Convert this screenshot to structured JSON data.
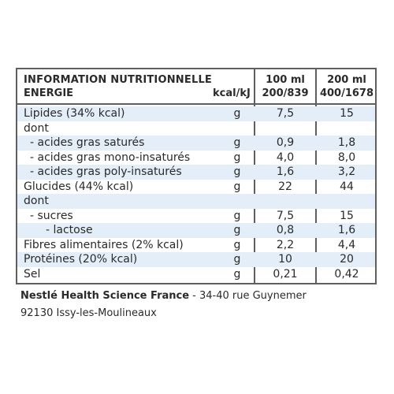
{
  "header": {
    "title": "INFORMATION NUTRITIONNELLE",
    "energy_label": "ENERGIE",
    "energy_unit": "kcal/kJ",
    "col1_title": "100 ml",
    "col1_energy": "200/839",
    "col2_title": "200 ml",
    "col2_energy": "400/1678"
  },
  "rows": [
    {
      "label": "Lipides (34% kcal)",
      "unit": "g",
      "v100": "7,5",
      "v200": "15",
      "indent": 0,
      "band": true
    },
    {
      "label": "dont",
      "unit": "",
      "v100": "",
      "v200": "",
      "indent": 0,
      "band": false
    },
    {
      "label": "- acides gras saturés",
      "unit": "g",
      "v100": "0,9",
      "v200": "1,8",
      "indent": 1,
      "band": true
    },
    {
      "label": "- acides gras mono-insaturés",
      "unit": "g",
      "v100": "4,0",
      "v200": "8,0",
      "indent": 1,
      "band": false
    },
    {
      "label": "- acides gras poly-insaturés",
      "unit": "g",
      "v100": "1,6",
      "v200": "3,2",
      "indent": 1,
      "band": true
    },
    {
      "label": "Glucides (44% kcal)",
      "unit": "g",
      "v100": "22",
      "v200": "44",
      "indent": 0,
      "band": false
    },
    {
      "label": "dont",
      "unit": "",
      "v100": "",
      "v200": "",
      "indent": 0,
      "band": true
    },
    {
      "label": "- sucres",
      "unit": "g",
      "v100": "7,5",
      "v200": "15",
      "indent": 1,
      "band": false
    },
    {
      "label": "- lactose",
      "unit": "g",
      "v100": "0,8",
      "v200": "1,6",
      "indent": 2,
      "band": true
    },
    {
      "label": "Fibres alimentaires (2% kcal)",
      "unit": "g",
      "v100": "2,2",
      "v200": "4,4",
      "indent": 0,
      "band": false
    },
    {
      "label": "Protéines (20% kcal)",
      "unit": "g",
      "v100": "10",
      "v200": "20",
      "indent": 0,
      "band": true
    },
    {
      "label": "Sel",
      "unit": "g",
      "v100": "0,21",
      "v200": "0,42",
      "indent": 0,
      "band": false
    }
  ],
  "footer": {
    "company": "Nestlé Health Science France",
    "address1": " - 34-40 rue Guynemer",
    "address2": "92130 Issy-les-Moulineaux"
  }
}
